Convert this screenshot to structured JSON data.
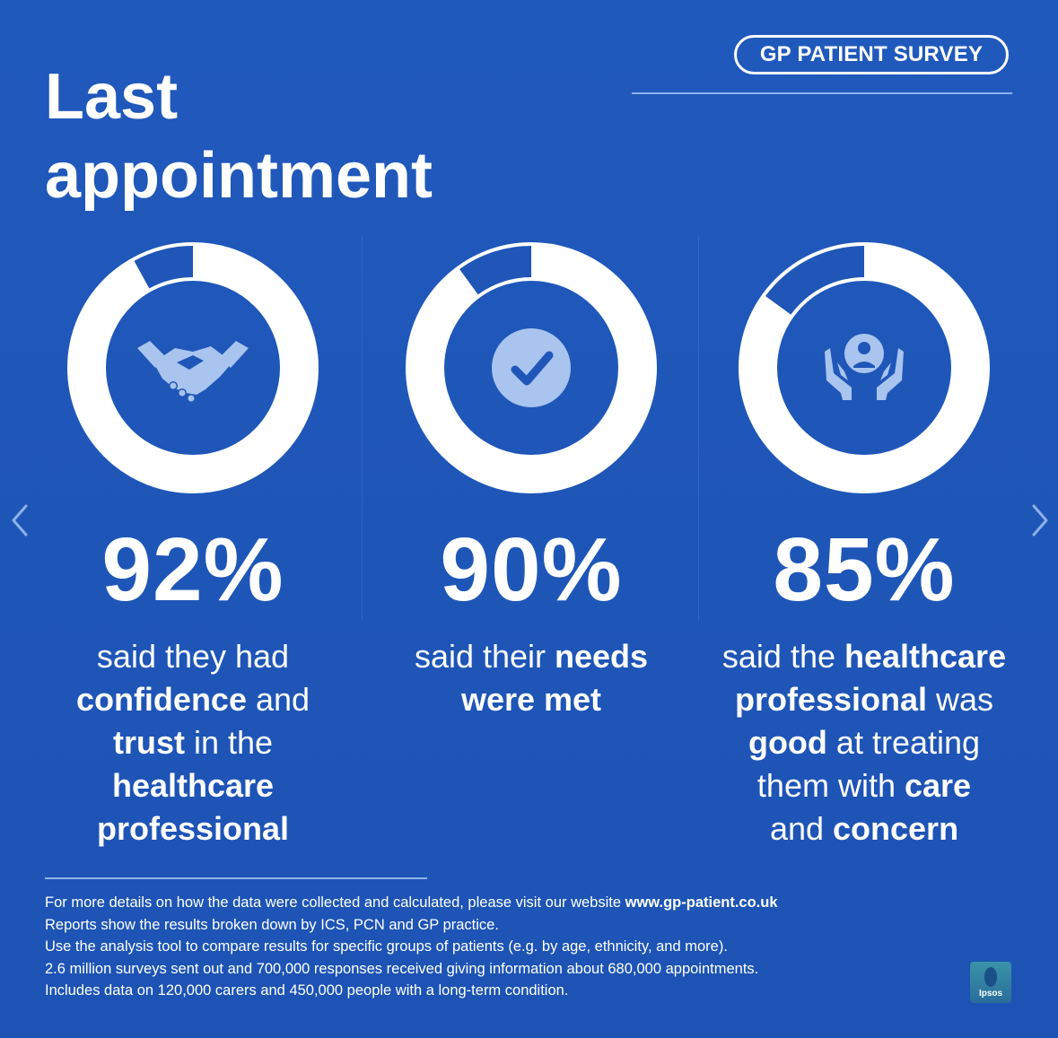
{
  "header": {
    "title_line1": "Last",
    "title_line2": "appointment",
    "badge": "GP PATIENT SURVEY"
  },
  "stats": [
    {
      "value": "92%",
      "fraction": 0.92,
      "icon": "handshake-icon",
      "description": [
        {
          "text": "said they had",
          "bold": false
        },
        {
          "text": "\n",
          "bold": false
        },
        {
          "text": "confidence",
          "bold": true
        },
        {
          "text": " and",
          "bold": false
        },
        {
          "text": "\n",
          "bold": false
        },
        {
          "text": "trust",
          "bold": true
        },
        {
          "text": " in the",
          "bold": false
        },
        {
          "text": "\n",
          "bold": false
        },
        {
          "text": "healthcare",
          "bold": true
        },
        {
          "text": "\n",
          "bold": false
        },
        {
          "text": "professional",
          "bold": true
        }
      ]
    },
    {
      "value": "90%",
      "fraction": 0.9,
      "icon": "checkmark-icon",
      "description": [
        {
          "text": "said their ",
          "bold": false
        },
        {
          "text": "needs",
          "bold": true
        },
        {
          "text": "\n",
          "bold": false
        },
        {
          "text": "were met",
          "bold": true
        }
      ]
    },
    {
      "value": "85%",
      "fraction": 0.85,
      "icon": "person-in-hands-icon",
      "description": [
        {
          "text": "said the ",
          "bold": false
        },
        {
          "text": "healthcare",
          "bold": true
        },
        {
          "text": "\n",
          "bold": false
        },
        {
          "text": "professional",
          "bold": true
        },
        {
          "text": " was",
          "bold": false
        },
        {
          "text": "\n",
          "bold": false
        },
        {
          "text": "good",
          "bold": true
        },
        {
          "text": " at treating",
          "bold": false
        },
        {
          "text": "\n",
          "bold": false
        },
        {
          "text": "them with ",
          "bold": false
        },
        {
          "text": "care",
          "bold": true
        },
        {
          "text": "\n",
          "bold": false
        },
        {
          "text": "and ",
          "bold": false
        },
        {
          "text": "concern",
          "bold": true
        }
      ]
    }
  ],
  "footnotes": [
    [
      {
        "text": "For more details on how the data were collected and calculated, please visit our website ",
        "bold": false
      },
      {
        "text": "www.gp-patient.co.uk",
        "bold": true
      }
    ],
    [
      {
        "text": "Reports show the results broken down by ICS, PCN and GP practice.",
        "bold": false
      }
    ],
    [
      {
        "text": "Use the analysis tool to compare results for specific groups of patients (e.g. by age, ethnicity, and more).",
        "bold": false
      }
    ],
    [
      {
        "text": "2.6 million surveys sent out and 700,000 responses received giving information about 680,000 appointments.",
        "bold": false
      }
    ],
    [
      {
        "text": "Includes data on 120,000 carers and 450,000 people with a long-term condition.",
        "bold": false
      }
    ]
  ],
  "logo": {
    "text": "Ipsos"
  },
  "navigation": {
    "prev_icon": "chevron-left-icon",
    "next_icon": "chevron-right-icon"
  },
  "colors": {
    "background": "#1f56b8",
    "donut_track": "#ffffff",
    "donut_gap": "#1f56b8",
    "icon_fill": "#a9c4ee",
    "rule": "#8fb2ea"
  }
}
